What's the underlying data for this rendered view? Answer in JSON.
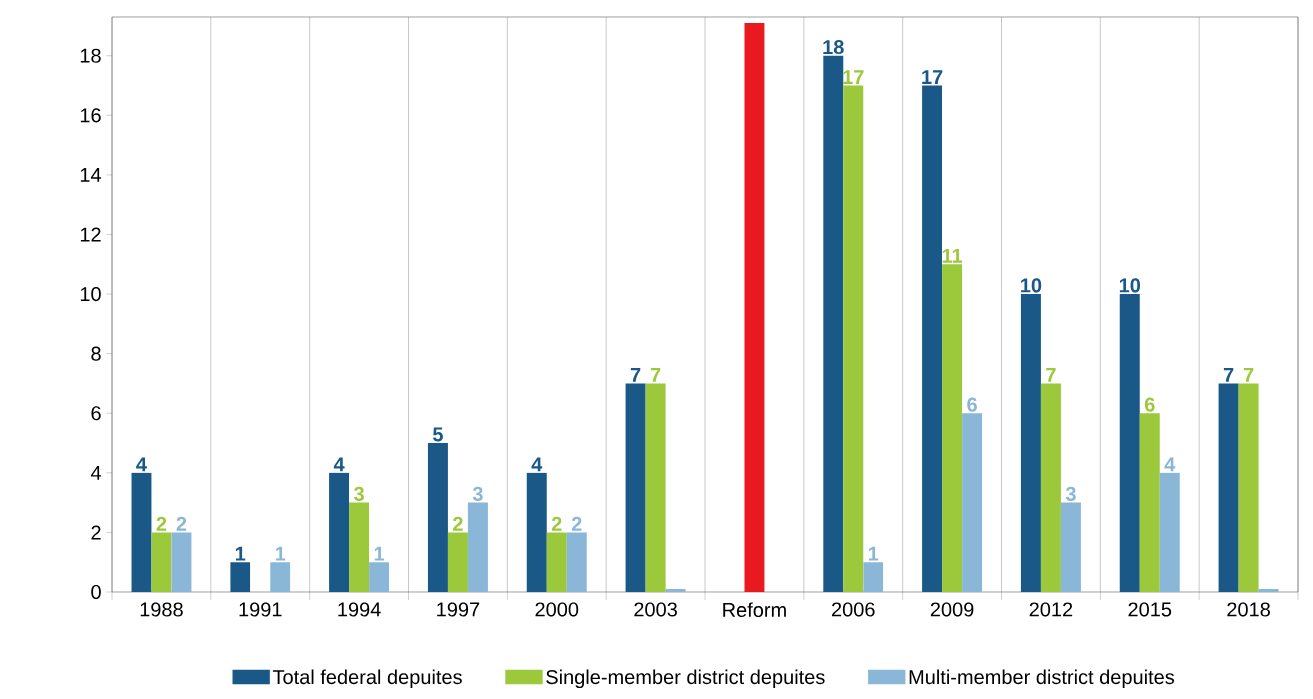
{
  "chart_data": {
    "type": "bar",
    "categories": [
      "1988",
      "1991",
      "1994",
      "1997",
      "2000",
      "2003",
      "Reform",
      "2006",
      "2009",
      "2012",
      "2015",
      "2018"
    ],
    "series": [
      {
        "name": "Total federal depuites",
        "color": "#1a5887",
        "values": [
          4,
          1,
          4,
          5,
          4,
          7,
          null,
          18,
          17,
          10,
          10,
          7
        ],
        "value_labels": [
          "4",
          "1",
          "4",
          "5",
          "4",
          "7",
          null,
          "18",
          "17",
          "10",
          "10",
          "7"
        ]
      },
      {
        "name": "Single-member district depuites",
        "color": "#9cc83c",
        "values": [
          2,
          0,
          3,
          2,
          2,
          7,
          null,
          17,
          11,
          7,
          6,
          7
        ],
        "value_labels": [
          "2",
          null,
          "3",
          "2",
          "2",
          "7",
          null,
          "17",
          "11",
          "7",
          "6",
          "7"
        ]
      },
      {
        "name": "Multi-member district depuites",
        "color": "#8ab6d8",
        "values": [
          2,
          1,
          1,
          3,
          2,
          0.1,
          null,
          1,
          6,
          3,
          4,
          0.1
        ],
        "value_labels": [
          "2",
          "1",
          "1",
          "3",
          "2",
          null,
          null,
          "1",
          "6",
          "3",
          "4",
          null
        ]
      },
      {
        "color": "#e8191f",
        "values": [
          null,
          null,
          null,
          null,
          null,
          null,
          19.1,
          null,
          null,
          null,
          null,
          null
        ]
      }
    ],
    "ylim": [
      0,
      19.3
    ],
    "yticks": [
      0,
      2,
      4,
      6,
      8,
      10,
      12,
      14,
      16,
      18
    ],
    "grid": "x",
    "legend": "bottom"
  }
}
